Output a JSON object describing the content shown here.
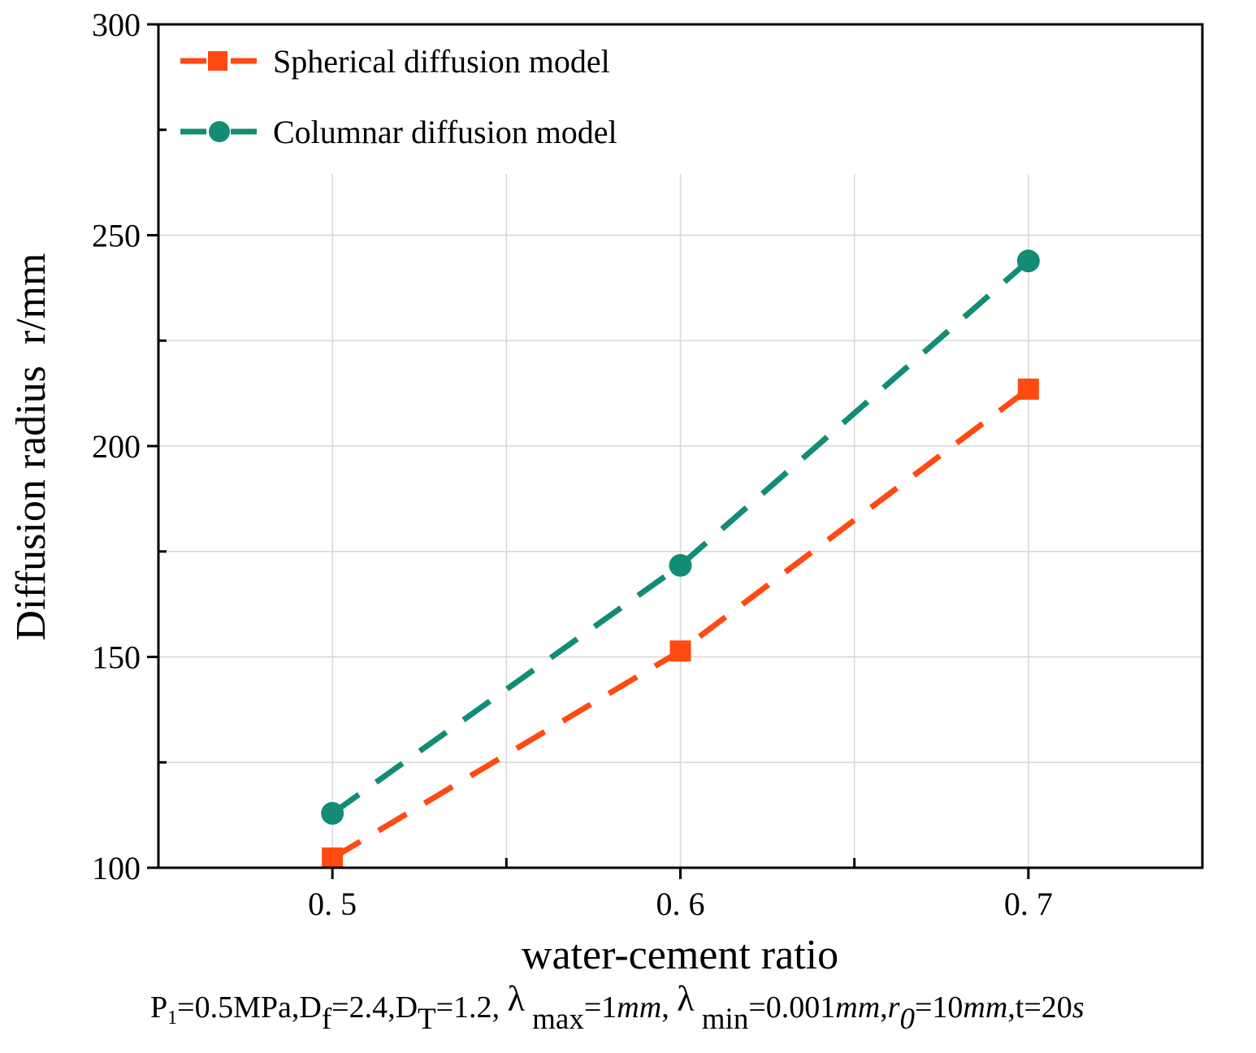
{
  "chart_data": {
    "type": "line",
    "title": "",
    "xlabel": "water-cement ratio",
    "ylabel": "Diffusion radius  r/mm",
    "x": [
      0.5,
      0.6,
      0.7
    ],
    "x_tick_labels": [
      "0. 5",
      "0. 6",
      "0. 7"
    ],
    "xlim": [
      0.45,
      0.75
    ],
    "ylim": [
      100,
      300
    ],
    "y_ticks": [
      100,
      150,
      200,
      250,
      300
    ],
    "y_tick_labels": [
      "100",
      "150",
      "200",
      "250",
      "300"
    ],
    "grid": true,
    "legend_position": "top-left",
    "series": [
      {
        "name": "Spherical diffusion model",
        "values": [
          102.3,
          151.4,
          213.5
        ],
        "color": "#FF4A12",
        "marker": "square",
        "linestyle": "dashed"
      },
      {
        "name": "Columnar diffusion model",
        "values": [
          112.9,
          171.7,
          243.9
        ],
        "color": "#128C74",
        "marker": "circle",
        "linestyle": "dashed"
      }
    ]
  },
  "annotation": {
    "segments": [
      {
        "t": "P",
        "k": "n"
      },
      {
        "t": "1",
        "k": "sub-small"
      },
      {
        "t": "=0.5MPa,D",
        "k": "n"
      },
      {
        "t": "f",
        "k": "sub"
      },
      {
        "t": "=2.4,D",
        "k": "n"
      },
      {
        "t": "T",
        "k": "sub"
      },
      {
        "t": "=1.2, ",
        "k": "n"
      },
      {
        "t": "λ",
        "k": "greek"
      },
      {
        "t": " max",
        "k": "sub"
      },
      {
        "t": "=1",
        "k": "n"
      },
      {
        "t": "mm",
        "k": "italic"
      },
      {
        "t": ", ",
        "k": "n"
      },
      {
        "t": "λ",
        "k": "greek"
      },
      {
        "t": " min",
        "k": "sub"
      },
      {
        "t": "=0.001",
        "k": "n"
      },
      {
        "t": "mm",
        "k": "italic"
      },
      {
        "t": ",",
        "k": "n"
      },
      {
        "t": "r",
        "k": "italic"
      },
      {
        "t": "0",
        "k": "sub-italic"
      },
      {
        "t": "=10",
        "k": "n"
      },
      {
        "t": "mm",
        "k": "italic"
      },
      {
        "t": ",t=20",
        "k": "n"
      },
      {
        "t": "s",
        "k": "italic"
      }
    ]
  }
}
